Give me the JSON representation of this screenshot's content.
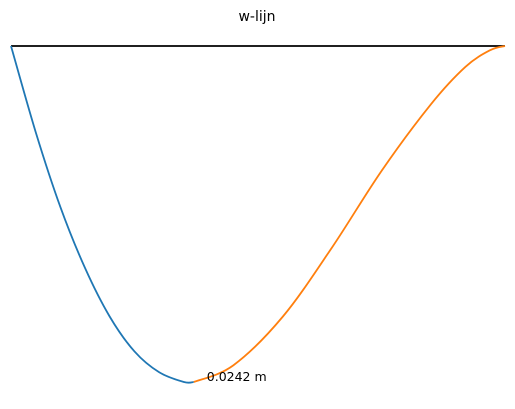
{
  "chart_data": {
    "type": "line",
    "title": "w-lijn",
    "xlabel": "",
    "ylabel": "",
    "xlim": [
      0,
      1
    ],
    "ylim": [
      -0.0242,
      0
    ],
    "grid": false,
    "axes_visible": false,
    "baseline": {
      "y": 0,
      "color": "#000000"
    },
    "series": [
      {
        "color": "#1f77b4",
        "x": [
          0.0,
          0.05,
          0.1,
          0.15,
          0.2,
          0.25,
          0.3,
          0.35,
          0.37
        ],
        "y": [
          0.0,
          -0.0062,
          -0.0116,
          -0.016,
          -0.0195,
          -0.022,
          -0.0235,
          -0.0242,
          -0.0242
        ]
      },
      {
        "color": "#ff7f0e",
        "x": [
          0.37,
          0.45,
          0.55,
          0.65,
          0.75,
          0.85,
          0.92,
          0.97,
          1.0
        ],
        "y": [
          -0.0242,
          -0.023,
          -0.0195,
          -0.0145,
          -0.009,
          -0.0042,
          -0.0015,
          -0.0003,
          0.0
        ]
      }
    ],
    "annotations": [
      {
        "text": "0.0242 m",
        "x": 0.37,
        "y": -0.0242
      }
    ]
  }
}
